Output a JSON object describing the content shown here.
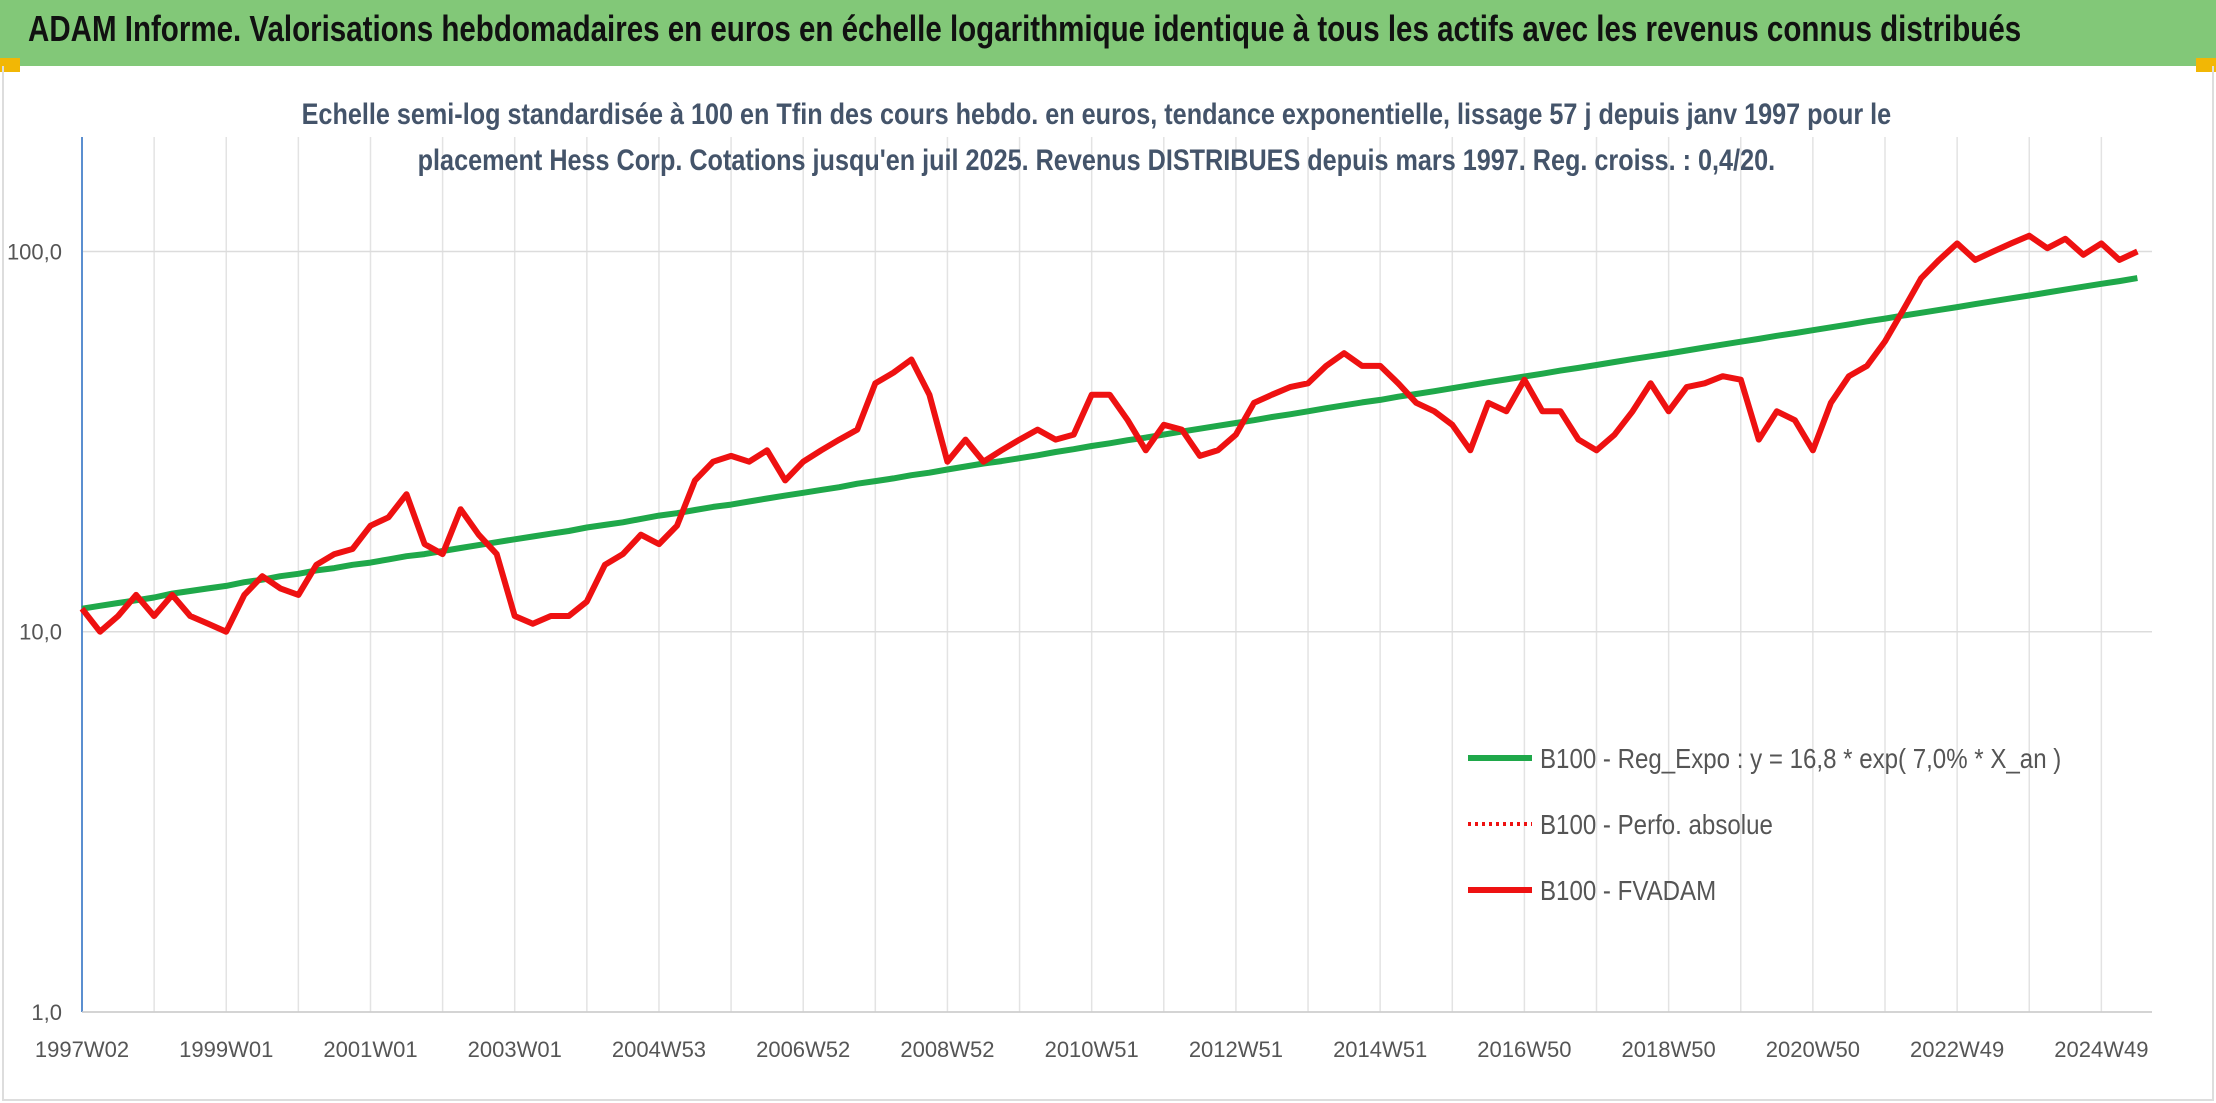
{
  "header": {
    "title": "ADAM Informe. Valorisations hebdomadaires en euros en échelle logarithmique identique à tous les actifs avec les revenus connus distribués"
  },
  "chart_data": {
    "type": "line",
    "title": "Echelle semi-log standardisée à 100 en Tfin des cours hebdo. en euros, tendance exponentielle, lissage 57 j depuis janv 1997 pour le placement Hess Corp. Cotations jusqu'en juil 2025. Revenus DISTRIBUES depuis mars 1997. Reg. croiss. : 0,4/20.",
    "log_scale": true,
    "grid": true,
    "legend": "right",
    "ylim": [
      1,
      200
    ],
    "yticks": [
      {
        "value": 1,
        "label": "1,0"
      },
      {
        "value": 10,
        "label": "10,0"
      },
      {
        "value": 100,
        "label": "100,0"
      }
    ],
    "categories": [
      "1997W02",
      null,
      null,
      null,
      null,
      null,
      null,
      null,
      "1999W01",
      null,
      null,
      null,
      null,
      null,
      null,
      null,
      "2001W01",
      null,
      null,
      null,
      null,
      null,
      null,
      null,
      "2003W01",
      null,
      null,
      null,
      null,
      null,
      null,
      null,
      "2004W53",
      null,
      null,
      null,
      null,
      null,
      null,
      null,
      "2006W52",
      null,
      null,
      null,
      null,
      null,
      null,
      null,
      "2008W52",
      null,
      null,
      null,
      null,
      null,
      null,
      null,
      "2010W51",
      null,
      null,
      null,
      null,
      null,
      null,
      null,
      "2012W51",
      null,
      null,
      null,
      null,
      null,
      null,
      null,
      "2014W51",
      null,
      null,
      null,
      null,
      null,
      null,
      null,
      "2016W50",
      null,
      null,
      null,
      null,
      null,
      null,
      null,
      "2018W50",
      null,
      null,
      null,
      null,
      null,
      null,
      null,
      "2020W50",
      null,
      null,
      null,
      null,
      null,
      null,
      null,
      "2022W49",
      null,
      null,
      null,
      null,
      null,
      null,
      null,
      "2024W49",
      null,
      null
    ],
    "series": [
      {
        "name": "B100 - Reg_Expo : y = 16,8 * exp( 7,0% *  X_an )",
        "color": "#1fa84a",
        "style": "solid",
        "values": [
          11.5,
          11.7,
          11.9,
          12.1,
          12.3,
          12.6,
          12.8,
          13.0,
          13.2,
          13.5,
          13.7,
          14.0,
          14.2,
          14.5,
          14.7,
          15.0,
          15.2,
          15.5,
          15.8,
          16.0,
          16.3,
          16.6,
          16.9,
          17.2,
          17.5,
          17.8,
          18.1,
          18.4,
          18.8,
          19.1,
          19.4,
          19.8,
          20.2,
          20.5,
          20.9,
          21.3,
          21.6,
          22.0,
          22.4,
          22.8,
          23.2,
          23.6,
          24.0,
          24.5,
          24.9,
          25.3,
          25.8,
          26.2,
          26.7,
          27.2,
          27.7,
          28.1,
          28.6,
          29.1,
          29.7,
          30.2,
          30.8,
          31.3,
          31.9,
          32.4,
          33.0,
          33.6,
          34.2,
          34.8,
          35.4,
          36.0,
          36.7,
          37.3,
          38.0,
          38.7,
          39.4,
          40.1,
          40.7,
          41.5,
          42.2,
          42.9,
          43.7,
          44.5,
          45.3,
          46.1,
          46.9,
          47.7,
          48.6,
          49.4,
          50.3,
          51.2,
          52.1,
          53.0,
          53.9,
          54.9,
          55.9,
          56.9,
          57.9,
          58.9,
          60.0,
          61.0,
          62.1,
          63.2,
          64.3,
          65.5,
          66.6,
          67.8,
          69.0,
          70.2,
          71.4,
          72.7,
          74.0,
          75.3,
          76.6,
          78.0,
          79.4,
          80.8,
          82.2,
          83.6,
          85.1
        ]
      },
      {
        "name": "B100 - Perfo. absolue",
        "color": "#ee1111",
        "style": "dotted",
        "values": [
          11.5,
          10,
          11,
          12.5,
          11,
          12.5,
          11,
          10.5,
          10,
          12.5,
          14,
          13,
          12.5,
          15,
          16,
          16.5,
          19,
          20,
          23,
          17,
          16,
          21,
          18,
          16,
          11,
          10.5,
          11,
          11,
          12,
          15,
          16,
          18,
          17,
          19,
          25,
          28,
          29,
          28,
          30,
          25,
          28,
          30,
          32,
          34,
          45,
          48,
          52,
          42,
          28,
          32,
          28,
          30,
          32,
          34,
          32,
          33,
          42,
          42,
          36,
          30,
          35,
          34,
          29,
          30,
          33,
          40,
          42,
          44,
          45,
          50,
          54,
          50,
          50,
          45,
          40,
          38,
          35,
          30,
          40,
          38,
          46,
          38,
          38,
          32,
          30,
          33,
          38,
          45,
          38,
          44,
          45,
          47,
          46,
          32,
          38,
          36,
          30,
          40,
          47,
          50,
          58,
          70,
          85,
          95,
          105,
          95,
          100,
          105,
          110,
          102,
          108,
          98,
          105,
          95,
          100
        ]
      },
      {
        "name": "B100 - FVADAM",
        "color": "#ee1111",
        "style": "solid",
        "values": [
          11.5,
          10,
          11,
          12.5,
          11,
          12.5,
          11,
          10.5,
          10,
          12.5,
          14,
          13,
          12.5,
          15,
          16,
          16.5,
          19,
          20,
          23,
          17,
          16,
          21,
          18,
          16,
          11,
          10.5,
          11,
          11,
          12,
          15,
          16,
          18,
          17,
          19,
          25,
          28,
          29,
          28,
          30,
          25,
          28,
          30,
          32,
          34,
          45,
          48,
          52,
          42,
          28,
          32,
          28,
          30,
          32,
          34,
          32,
          33,
          42,
          42,
          36,
          30,
          35,
          34,
          29,
          30,
          33,
          40,
          42,
          44,
          45,
          50,
          54,
          50,
          50,
          45,
          40,
          38,
          35,
          30,
          40,
          38,
          46,
          38,
          38,
          32,
          30,
          33,
          38,
          45,
          38,
          44,
          45,
          47,
          46,
          32,
          38,
          36,
          30,
          40,
          47,
          50,
          58,
          70,
          85,
          95,
          105,
          95,
          100,
          105,
          110,
          102,
          108,
          98,
          105,
          95,
          100
        ]
      }
    ]
  }
}
